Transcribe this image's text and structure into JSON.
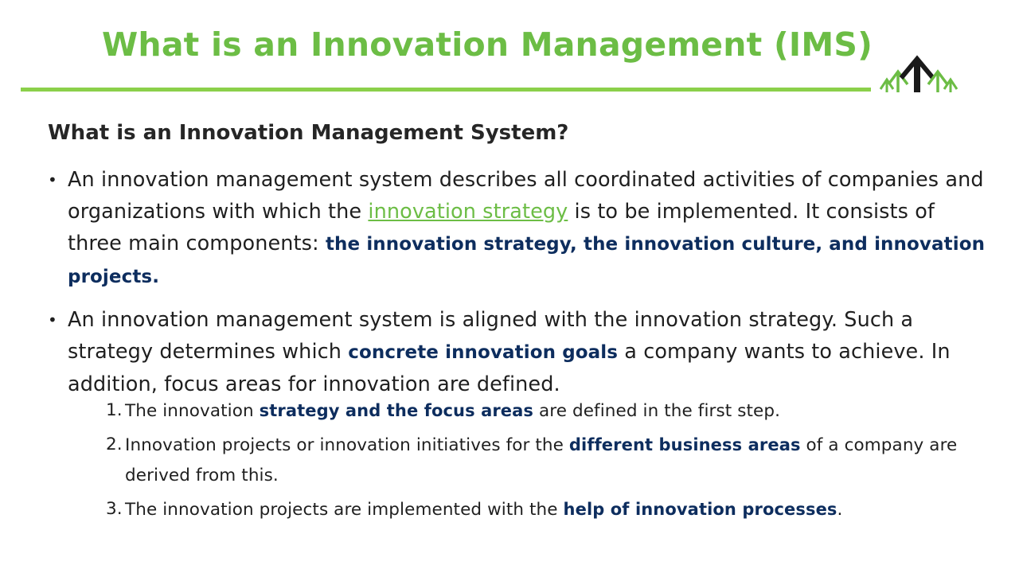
{
  "slide": {
    "title": "What is an Innovation Management (IMS)",
    "subtitle": "What is an Innovation Management System?",
    "colors": {
      "title_green": "#6cbd45",
      "rule_green": "#8bd04a",
      "emphasis_navy": "#0d2d5e",
      "logo_black": "#1a1a1a"
    },
    "logo": {
      "icon": "growth-arrows-logo-icon"
    },
    "bullets": [
      {
        "marker": "•",
        "t1": "An innovation management system describes all coordinated activities of companies and organizations with which the ",
        "link": "innovation strategy",
        "t2": " is to be implemented. It consists of three main components: ",
        "b1": "the innovation strategy, the innovation culture, and innovation projects."
      },
      {
        "marker": "•",
        "t1": "An innovation management system is aligned with the innovation strategy. Such a strategy determines which ",
        "b1": "concrete innovation goals",
        "t2": " a company wants to achieve. In addition, focus areas for innovation are defined."
      }
    ],
    "steps": [
      {
        "num": "1.",
        "t1": "The innovation ",
        "b1": "strategy and the focus areas",
        "t2": " are defined in the first step."
      },
      {
        "num": "2.",
        "t1": "Innovation projects or innovation initiatives  for the ",
        "b1": "different business areas",
        "t2": " of a company are derived from this."
      },
      {
        "num": "3.",
        "t1": "The innovation projects are implemented with the ",
        "b1": "help of innovation processes",
        "t2": "."
      }
    ]
  }
}
